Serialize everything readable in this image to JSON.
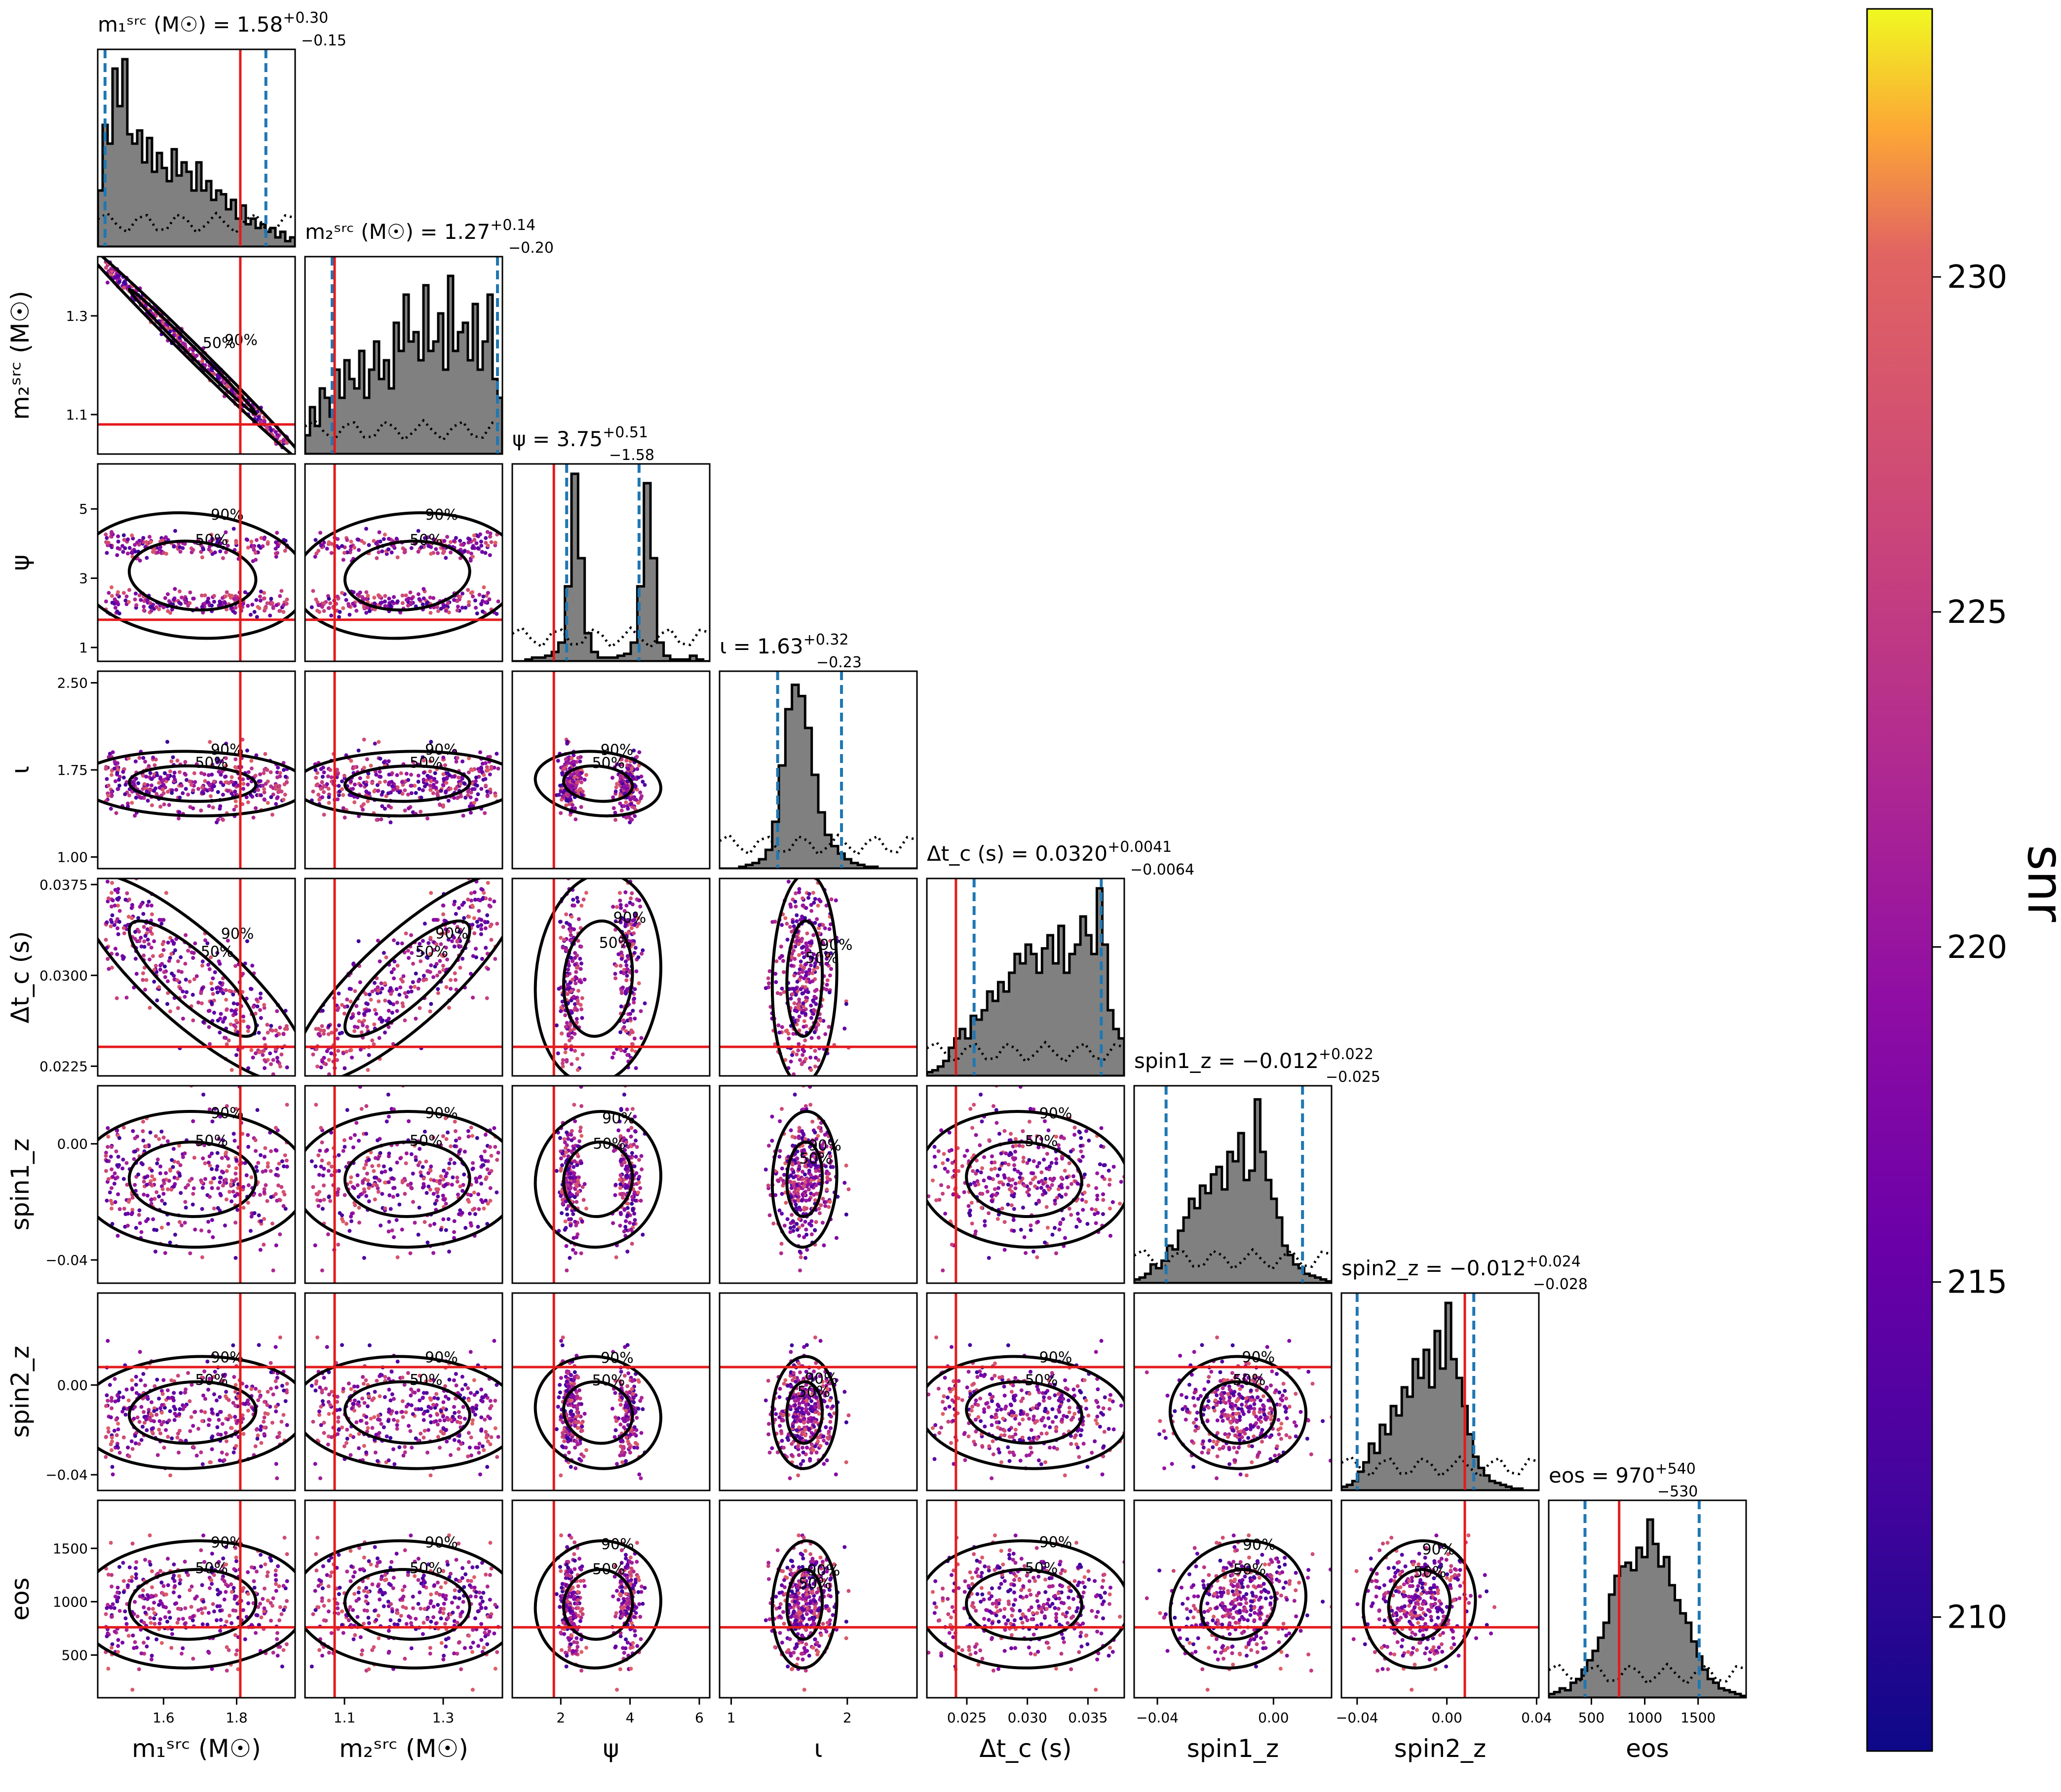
{
  "chart_data": {
    "type": "corner",
    "parameters": [
      {
        "key": "m1",
        "label": "m₁ˢʳᶜ (M☉)",
        "range": [
          1.42,
          1.96
        ],
        "ticks": [
          1.6,
          1.8
        ],
        "tick_labels": [
          "1.6",
          "1.8"
        ],
        "truth": 1.81,
        "summary": {
          "name": "m₁ˢʳᶜ (M☉)",
          "median": "1.58",
          "plus": "+0.30",
          "minus": "−0.15"
        },
        "ci": [
          1.44,
          1.88
        ]
      },
      {
        "key": "m2",
        "label": "m₂ˢʳᶜ (M☉)",
        "range": [
          1.02,
          1.42
        ],
        "ticks": [
          1.1,
          1.3
        ],
        "tick_labels": [
          "1.1",
          "1.3"
        ],
        "truth": 1.08,
        "summary": {
          "name": "m₂ˢʳᶜ (M☉)",
          "median": "1.27",
          "plus": "+0.14",
          "minus": "−0.20"
        },
        "ci": [
          1.075,
          1.41
        ]
      },
      {
        "key": "psi",
        "label": "ψ",
        "range": [
          0.6,
          6.3
        ],
        "ticks": [
          1,
          3,
          5
        ],
        "tick_labels": [
          "1",
          "3",
          "5"
        ],
        "x_ticks": [
          2,
          4,
          6
        ],
        "x_tick_labels": [
          "2",
          "4",
          "6"
        ],
        "truth": 1.8,
        "summary": {
          "name": "ψ",
          "median": "3.75",
          "plus": "+0.51",
          "minus": "−1.58"
        },
        "ci": [
          2.17,
          4.26
        ]
      },
      {
        "key": "iota",
        "label": "ι",
        "range": [
          0.9,
          2.6
        ],
        "ticks": [
          1.0,
          1.75,
          2.5
        ],
        "tick_labels": [
          "1.00",
          "1.75",
          "2.50"
        ],
        "x_ticks": [
          1,
          2
        ],
        "x_tick_labels": [
          "1",
          "2"
        ],
        "truth": null,
        "summary": {
          "name": "ι",
          "median": "1.63",
          "plus": "+0.32",
          "minus": "−0.23"
        },
        "ci": [
          1.4,
          1.95
        ]
      },
      {
        "key": "dtc",
        "label": "Δt_c (s)",
        "range": [
          0.0217,
          0.038
        ],
        "ticks": [
          0.0225,
          0.03,
          0.0375
        ],
        "tick_labels": [
          "0.0225",
          "0.0300",
          "0.0375"
        ],
        "x_ticks": [
          0.025,
          0.03,
          0.035
        ],
        "x_tick_labels": [
          "0.025",
          "0.030",
          "0.035"
        ],
        "truth": 0.0241,
        "summary": {
          "name": "Δt_c (s)",
          "median": "0.0320",
          "plus": "+0.0041",
          "minus": "−0.0064"
        },
        "ci": [
          0.0256,
          0.0361
        ]
      },
      {
        "key": "s1",
        "label": "spin1_z",
        "range": [
          -0.048,
          0.02
        ],
        "ticks": [
          -0.04,
          0.0
        ],
        "tick_labels": [
          "−0.04",
          "0.00"
        ],
        "truth": null,
        "summary": {
          "name": "spin1_z",
          "median": "−0.012",
          "plus": "+0.022",
          "minus": "−0.025"
        },
        "ci": [
          -0.037,
          0.01
        ]
      },
      {
        "key": "s2",
        "label": "spin2_z",
        "range": [
          -0.047,
          0.041
        ],
        "ticks": [
          -0.04,
          0.0
        ],
        "tick_labels": [
          "−0.04",
          "0.00"
        ],
        "x_ticks": [
          -0.04,
          0.0,
          0.04
        ],
        "x_tick_labels": [
          "−0.04",
          "0.00",
          "0.04"
        ],
        "truth": 0.008,
        "summary": {
          "name": "spin2_z",
          "median": "−0.012",
          "plus": "+0.024",
          "minus": "−0.028"
        },
        "ci": [
          -0.04,
          0.012
        ]
      },
      {
        "key": "eos",
        "label": "eos",
        "range": [
          100,
          1950
        ],
        "ticks": [
          500,
          1000,
          1500
        ],
        "tick_labels": [
          "500",
          "1000",
          "1500"
        ],
        "truth": 760,
        "summary": {
          "name": "eos",
          "median": "970",
          "plus": "+540",
          "minus": "−530"
        },
        "ci": [
          440,
          1510
        ]
      }
    ],
    "histograms": {
      "m1": [
        0.3,
        0.65,
        0.55,
        0.95,
        0.75,
        1.0,
        0.6,
        0.55,
        0.62,
        0.45,
        0.58,
        0.4,
        0.5,
        0.42,
        0.35,
        0.52,
        0.38,
        0.45,
        0.4,
        0.3,
        0.45,
        0.3,
        0.35,
        0.25,
        0.3,
        0.28,
        0.2,
        0.25,
        0.15,
        0.22,
        0.12,
        0.15,
        0.1,
        0.12,
        0.08,
        0.1,
        0.05,
        0.08,
        0.03,
        0.05
      ],
      "m2": [
        0.1,
        0.25,
        0.15,
        0.35,
        0.3,
        0.2,
        0.45,
        0.3,
        0.5,
        0.4,
        0.35,
        0.55,
        0.3,
        0.45,
        0.6,
        0.4,
        0.5,
        0.35,
        0.7,
        0.55,
        0.85,
        0.6,
        0.65,
        0.5,
        0.9,
        0.55,
        0.6,
        0.75,
        0.45,
        0.95,
        0.55,
        0.65,
        0.7,
        0.5,
        0.8,
        0.45,
        0.6,
        0.85,
        0.4,
        0.3
      ],
      "psi": [
        0,
        0,
        0.01,
        0.02,
        0.02,
        0.03,
        0.05,
        0.1,
        0.4,
        1.0,
        0.55,
        0.15,
        0.05,
        0.02,
        0.02,
        0.02,
        0.03,
        0.04,
        0.1,
        0.4,
        0.95,
        0.55,
        0.1,
        0.03,
        0.01,
        0.01,
        0.01,
        0.03,
        0.01,
        0.0
      ],
      "iota": [
        0,
        0,
        0,
        0.01,
        0.02,
        0.03,
        0.05,
        0.1,
        0.25,
        0.55,
        0.85,
        0.98,
        0.92,
        0.75,
        0.5,
        0.3,
        0.18,
        0.12,
        0.08,
        0.05,
        0.03,
        0.02,
        0.01,
        0.01,
        0.0,
        0.0,
        0.0,
        0.0,
        0.0,
        0.0
      ],
      "dtc": [
        0.02,
        0.03,
        0.05,
        0.08,
        0.15,
        0.2,
        0.25,
        0.2,
        0.32,
        0.3,
        0.35,
        0.45,
        0.4,
        0.5,
        0.45,
        0.55,
        0.65,
        0.6,
        0.7,
        0.65,
        0.55,
        0.68,
        0.75,
        0.6,
        0.8,
        0.55,
        0.65,
        0.7,
        0.85,
        0.75,
        0.65,
        1.0,
        0.7,
        0.35,
        0.25,
        0.2
      ],
      "s1": [
        0.02,
        0.03,
        0.05,
        0.1,
        0.08,
        0.12,
        0.2,
        0.18,
        0.28,
        0.35,
        0.45,
        0.4,
        0.52,
        0.48,
        0.58,
        0.62,
        0.5,
        0.7,
        0.65,
        0.8,
        0.55,
        0.6,
        0.98,
        0.7,
        0.55,
        0.45,
        0.35,
        0.2,
        0.15,
        0.1,
        0.08,
        0.05,
        0.04,
        0.03,
        0.02,
        0.01
      ],
      "s2": [
        0.02,
        0.03,
        0.05,
        0.1,
        0.15,
        0.25,
        0.2,
        0.35,
        0.3,
        0.45,
        0.4,
        0.55,
        0.5,
        0.7,
        0.6,
        0.75,
        0.55,
        0.85,
        0.65,
        1.0,
        0.7,
        0.6,
        0.45,
        0.3,
        0.18,
        0.12,
        0.08,
        0.05,
        0.04,
        0.03,
        0.02,
        0.01,
        0.01,
        0.0,
        0.0,
        0.0
      ],
      "eos": [
        0.02,
        0.03,
        0.05,
        0.04,
        0.08,
        0.1,
        0.15,
        0.2,
        0.25,
        0.32,
        0.4,
        0.55,
        0.65,
        0.7,
        0.72,
        0.68,
        0.8,
        0.75,
        0.95,
        0.82,
        0.7,
        0.75,
        0.6,
        0.52,
        0.45,
        0.4,
        0.3,
        0.22,
        0.15,
        0.1,
        0.08,
        0.05,
        0.04,
        0.03,
        0.02,
        0.01
      ]
    },
    "contour_labels": [
      "50%",
      "90%"
    ],
    "colorbar": {
      "label": "snr",
      "range": [
        208,
        234
      ],
      "ticks": [
        210,
        215,
        220,
        225,
        230
      ],
      "tick_labels": [
        "210",
        "215",
        "220",
        "225",
        "230"
      ],
      "colormap": "plasma"
    },
    "colors": {
      "truth": "#e41a1c",
      "ci": "#1f77b4",
      "hist_fill": "#808080",
      "contour": "#000000"
    }
  }
}
